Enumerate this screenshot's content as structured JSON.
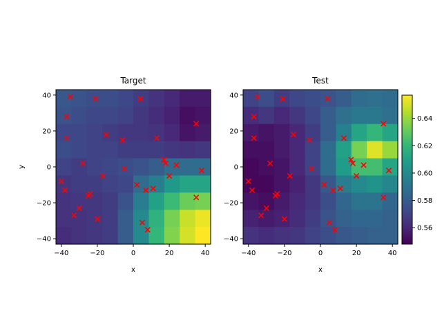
{
  "chart_data": {
    "type": "heatmap",
    "colormap": "viridis",
    "marker_color": "#ff0000",
    "marker_symbol": "x",
    "colorbar": {
      "vmin": 0.548,
      "vmax": 0.657,
      "ticks": [
        0.56,
        0.58,
        0.6,
        0.62,
        0.64
      ],
      "tick_labels": [
        "0.56",
        "0.58",
        "0.60",
        "0.62",
        "0.64"
      ]
    },
    "x_extent": [
      -43,
      43
    ],
    "y_extent": [
      -43,
      43
    ],
    "x_ticks": [
      -40,
      -20,
      0,
      20,
      40
    ],
    "x_tick_labels": [
      "−40",
      "−20",
      "0",
      "20",
      "40"
    ],
    "y_ticks": [
      -40,
      -20,
      0,
      20,
      40
    ],
    "y_tick_labels": [
      "−40",
      "−20",
      "0",
      "20",
      "40"
    ],
    "points": [
      [
        -35,
        39
      ],
      [
        -21,
        38
      ],
      [
        4,
        38
      ],
      [
        -37,
        28
      ],
      [
        35,
        24
      ],
      [
        -15,
        18
      ],
      [
        -37,
        16
      ],
      [
        -6,
        15
      ],
      [
        13,
        16
      ],
      [
        -28,
        2
      ],
      [
        17,
        4
      ],
      [
        18,
        2
      ],
      [
        24,
        1
      ],
      [
        -5,
        -1
      ],
      [
        38,
        -2
      ],
      [
        -17,
        -5
      ],
      [
        20,
        -5
      ],
      [
        -40,
        -8
      ],
      [
        2,
        -10
      ],
      [
        -38,
        -13
      ],
      [
        11,
        -12
      ],
      [
        7,
        -13
      ],
      [
        -24,
        -15
      ],
      [
        -25,
        -16
      ],
      [
        35,
        -17
      ],
      [
        -30,
        -23
      ],
      [
        -33,
        -27
      ],
      [
        -20,
        -29
      ],
      [
        5,
        -31
      ],
      [
        8,
        -35
      ]
    ],
    "panels": [
      {
        "title": "Target",
        "xlabel": "x",
        "ylabel": "y",
        "grid_rows": [
          [
            0.578,
            0.576,
            0.574,
            0.574,
            0.572,
            0.568,
            0.564,
            0.56,
            0.556,
            0.556
          ],
          [
            0.576,
            0.574,
            0.572,
            0.572,
            0.57,
            0.566,
            0.562,
            0.558,
            0.552,
            0.554
          ],
          [
            0.572,
            0.572,
            0.57,
            0.568,
            0.566,
            0.566,
            0.564,
            0.56,
            0.554,
            0.556
          ],
          [
            0.574,
            0.572,
            0.57,
            0.57,
            0.568,
            0.568,
            0.568,
            0.566,
            0.564,
            0.566
          ],
          [
            0.57,
            0.568,
            0.57,
            0.572,
            0.574,
            0.576,
            0.58,
            0.586,
            0.586,
            0.586
          ],
          [
            0.566,
            0.568,
            0.568,
            0.57,
            0.572,
            0.586,
            0.594,
            0.606,
            0.612,
            0.612
          ],
          [
            0.564,
            0.566,
            0.566,
            0.568,
            0.576,
            0.594,
            0.61,
            0.622,
            0.632,
            0.634
          ],
          [
            0.564,
            0.564,
            0.566,
            0.568,
            0.58,
            0.6,
            0.618,
            0.634,
            0.648,
            0.654
          ],
          [
            0.562,
            0.564,
            0.566,
            0.568,
            0.58,
            0.6,
            0.62,
            0.636,
            0.65,
            0.657
          ]
        ]
      },
      {
        "title": "Test",
        "xlabel": "x",
        "ylabel": "",
        "grid_rows": [
          [
            0.57,
            0.574,
            0.568,
            0.572,
            0.574,
            0.576,
            0.58,
            0.586,
            0.588,
            0.586
          ],
          [
            0.562,
            0.566,
            0.56,
            0.566,
            0.572,
            0.58,
            0.588,
            0.592,
            0.592,
            0.588
          ],
          [
            0.556,
            0.554,
            0.556,
            0.56,
            0.568,
            0.58,
            0.596,
            0.612,
            0.62,
            0.612
          ],
          [
            0.552,
            0.552,
            0.556,
            0.56,
            0.57,
            0.586,
            0.61,
            0.634,
            0.652,
            0.64
          ],
          [
            0.55,
            0.552,
            0.554,
            0.56,
            0.57,
            0.586,
            0.608,
            0.624,
            0.624,
            0.612
          ],
          [
            0.55,
            0.55,
            0.554,
            0.558,
            0.566,
            0.578,
            0.594,
            0.6,
            0.604,
            0.598
          ],
          [
            0.554,
            0.552,
            0.556,
            0.56,
            0.566,
            0.574,
            0.584,
            0.59,
            0.59,
            0.584
          ],
          [
            0.558,
            0.556,
            0.558,
            0.562,
            0.568,
            0.576,
            0.582,
            0.584,
            0.584,
            0.582
          ],
          [
            0.564,
            0.562,
            0.564,
            0.566,
            0.57,
            0.574,
            0.578,
            0.58,
            0.582,
            0.582
          ]
        ]
      }
    ]
  }
}
